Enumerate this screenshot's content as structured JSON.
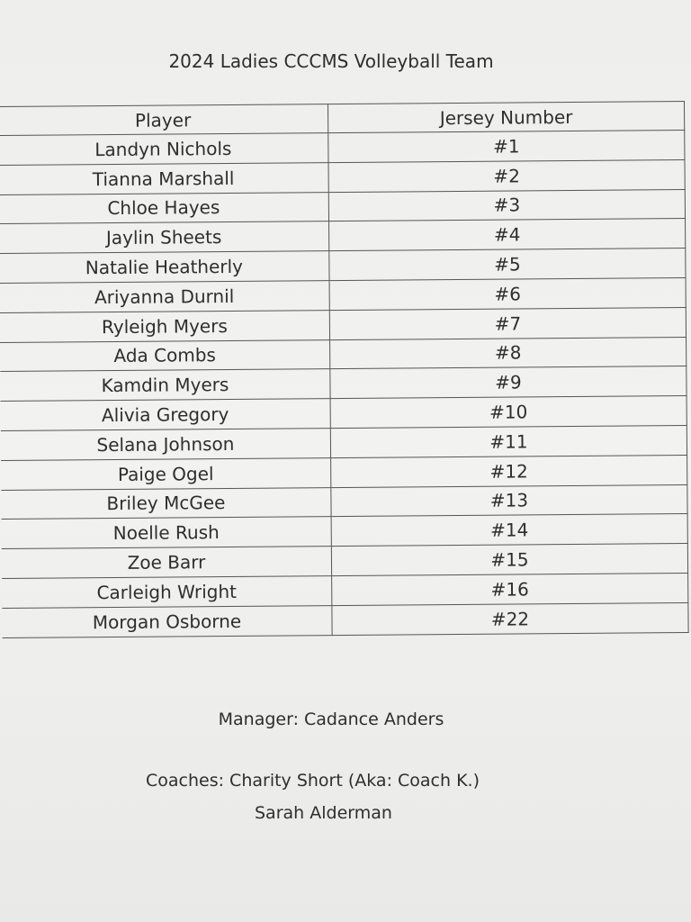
{
  "title": "2024 Ladies CCCMS Volleyball Team",
  "table": {
    "headers": [
      "Player",
      "Jersey Number"
    ],
    "rows": [
      [
        "Landyn Nichols",
        "#1"
      ],
      [
        "Tianna Marshall",
        "#2"
      ],
      [
        "Chloe Hayes",
        "#3"
      ],
      [
        "Jaylin Sheets",
        "#4"
      ],
      [
        "Natalie Heatherly",
        "#5"
      ],
      [
        "Ariyanna Durnil",
        "#6"
      ],
      [
        "Ryleigh Myers",
        "#7"
      ],
      [
        "Ada Combs",
        "#8"
      ],
      [
        "Kamdin Myers",
        "#9"
      ],
      [
        "Alivia Gregory",
        "#10"
      ],
      [
        "Selana Johnson",
        "#11"
      ],
      [
        "Paige Ogel",
        "#12"
      ],
      [
        "Briley McGee",
        "#13"
      ],
      [
        "Noelle Rush",
        "#14"
      ],
      [
        "Zoe Barr",
        "#15"
      ],
      [
        "Carleigh Wright",
        "#16"
      ],
      [
        "Morgan Osborne",
        "#22"
      ]
    ]
  },
  "manager": "Manager: Cadance Anders",
  "coaches": "Coaches: Charity Short (Aka: Coach K.)",
  "coach2": "Sarah Alderman"
}
